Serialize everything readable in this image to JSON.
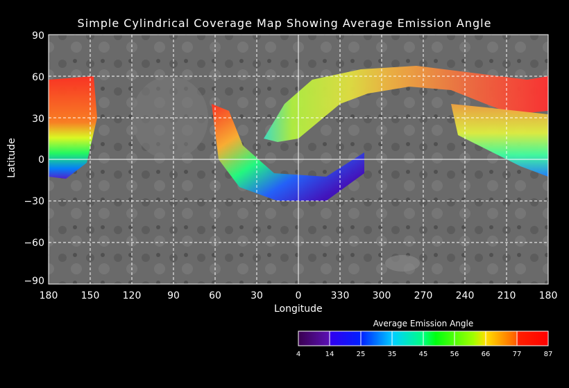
{
  "title": "Simple Cylindrical Coverage Map Showing Average Emission Angle",
  "y_axis": {
    "label": "Latitude",
    "ticks": [
      "90",
      "60",
      "30",
      "0",
      "−30",
      "−60",
      "−90"
    ]
  },
  "x_axis": {
    "label": "Longitude",
    "ticks": [
      "180",
      "150",
      "120",
      "90",
      "60",
      "30",
      "0",
      "330",
      "300",
      "270",
      "240",
      "210",
      "180"
    ]
  },
  "colorbar": {
    "title": "Average Emission Angle",
    "ticks": [
      "4",
      "14",
      "25",
      "35",
      "45",
      "56",
      "66",
      "77",
      "87"
    ],
    "colors": [
      "#3a0060",
      "#5000c0",
      "#0000ff",
      "#00a0ff",
      "#00ffd0",
      "#00ff30",
      "#60ff00",
      "#e0ff00",
      "#ffc000",
      "#ff6000",
      "#ff0000"
    ]
  }
}
